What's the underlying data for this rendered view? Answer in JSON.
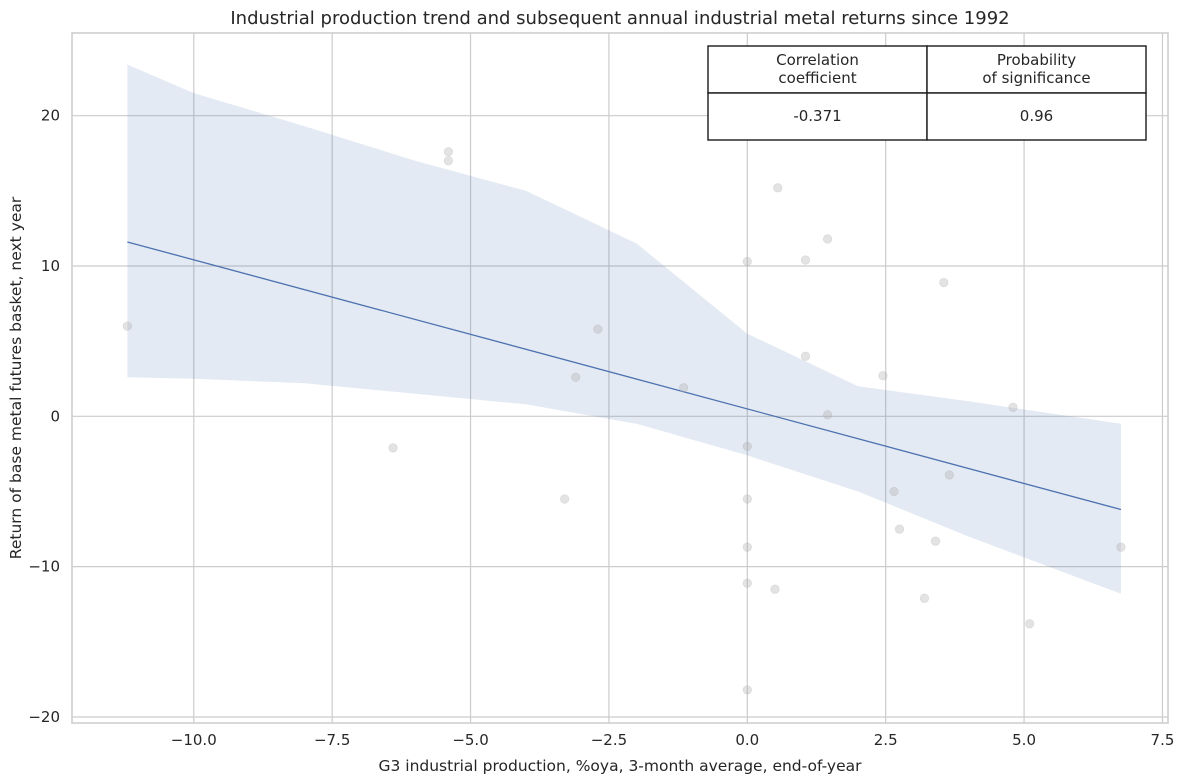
{
  "chart_data": {
    "type": "scatter",
    "title": "Industrial production trend and subsequent annual industrial metal returns since 1992",
    "xlabel": "G3 industrial production, %oya, 3-month average, end-of-year",
    "ylabel": "Return of base metal futures basket, next year",
    "xlim": [
      -12.2,
      7.6
    ],
    "ylim": [
      -20.4,
      25.5
    ],
    "xticks": [
      -10.0,
      -7.5,
      -5.0,
      -2.5,
      0.0,
      2.5,
      5.0,
      7.5
    ],
    "xtick_labels": [
      "−10.0",
      "−7.5",
      "−5.0",
      "−2.5",
      "0.0",
      "2.5",
      "5.0",
      "7.5"
    ],
    "yticks": [
      -20,
      -10,
      0,
      10,
      20
    ],
    "ytick_labels": [
      "−20",
      "−10",
      "0",
      "10",
      "20"
    ],
    "grid": true,
    "points": [
      {
        "x": -11.2,
        "y": 6.0
      },
      {
        "x": -6.4,
        "y": -2.1
      },
      {
        "x": -5.4,
        "y": 17.6
      },
      {
        "x": -5.4,
        "y": 17.0
      },
      {
        "x": -3.3,
        "y": -5.5
      },
      {
        "x": -3.1,
        "y": 2.6
      },
      {
        "x": -2.7,
        "y": 5.8
      },
      {
        "x": -1.15,
        "y": 1.9
      },
      {
        "x": 0.0,
        "y": 10.3
      },
      {
        "x": 0.0,
        "y": -2.0
      },
      {
        "x": 0.0,
        "y": -5.5
      },
      {
        "x": 0.0,
        "y": -8.7
      },
      {
        "x": 0.0,
        "y": -11.1
      },
      {
        "x": 0.0,
        "y": -18.2
      },
      {
        "x": 0.5,
        "y": -11.5
      },
      {
        "x": 0.55,
        "y": 15.2
      },
      {
        "x": 1.05,
        "y": 10.4
      },
      {
        "x": 1.05,
        "y": 4.0
      },
      {
        "x": 1.45,
        "y": 11.8
      },
      {
        "x": 1.45,
        "y": 0.1
      },
      {
        "x": 2.45,
        "y": 2.7
      },
      {
        "x": 2.65,
        "y": -5.0
      },
      {
        "x": 2.75,
        "y": -7.5
      },
      {
        "x": 3.2,
        "y": -12.1
      },
      {
        "x": 3.4,
        "y": -8.3
      },
      {
        "x": 3.55,
        "y": 8.9
      },
      {
        "x": 3.65,
        "y": -3.9
      },
      {
        "x": 4.8,
        "y": 0.6
      },
      {
        "x": 5.1,
        "y": -13.8
      },
      {
        "x": 6.75,
        "y": -8.7
      }
    ],
    "fit_line": {
      "x": [
        -11.2,
        6.75
      ],
      "y": [
        11.6,
        -6.2
      ]
    },
    "confidence_band": {
      "x": [
        -11.2,
        -10.0,
        -8.0,
        -6.0,
        -4.0,
        -2.0,
        0.0,
        2.0,
        4.0,
        6.75
      ],
      "upper": [
        23.4,
        21.5,
        19.3,
        17.0,
        15.0,
        11.5,
        5.5,
        2.0,
        1.0,
        -0.5
      ],
      "lower": [
        2.6,
        2.5,
        2.2,
        1.5,
        0.8,
        -0.5,
        -2.6,
        -5.0,
        -8.0,
        -11.8
      ]
    },
    "table": {
      "headers": [
        [
          "Correlation",
          "coefficient"
        ],
        [
          "Probability",
          "of significance"
        ]
      ],
      "values": [
        "-0.371",
        "0.96"
      ]
    }
  }
}
